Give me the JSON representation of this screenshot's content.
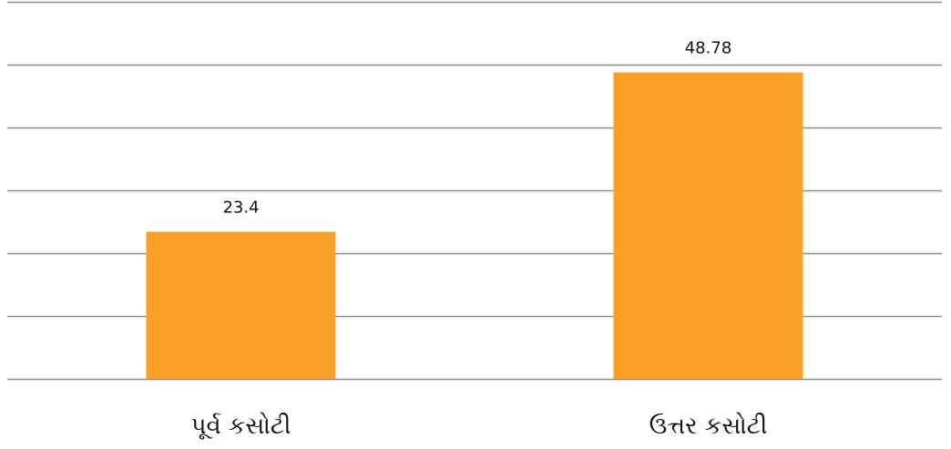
{
  "chart_data": {
    "type": "bar",
    "categories": [
      "પૂર્વ કસોટી",
      "ઉત્તર કસોટી"
    ],
    "values": [
      23.4,
      48.78
    ],
    "data_labels": [
      "23.4",
      "48.78"
    ],
    "title": "",
    "xlabel": "",
    "ylabel": "",
    "ylim": [
      0,
      60
    ],
    "y_tick_step": 10,
    "grid": true,
    "legend": "none",
    "y_tick_labels_visible": false,
    "bar_color": "#FAA026",
    "grid_color": "#8C8C8C"
  }
}
